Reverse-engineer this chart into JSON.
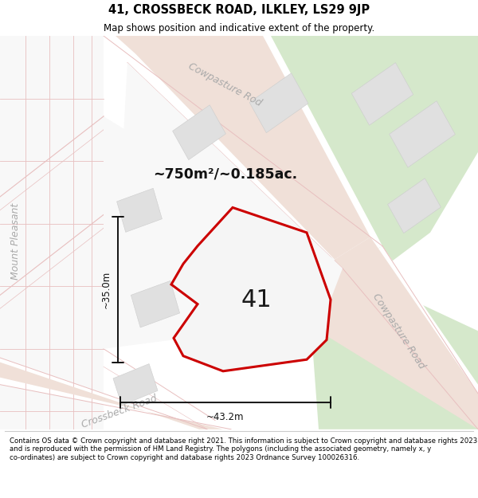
{
  "title": "41, CROSSBECK ROAD, ILKLEY, LS29 9JP",
  "subtitle": "Map shows position and indicative extent of the property.",
  "footer": "Contains OS data © Crown copyright and database right 2021. This information is subject to Crown copyright and database rights 2023 and is reproduced with the permission of HM Land Registry. The polygons (including the associated geometry, namely x, y co-ordinates) are subject to Crown copyright and database rights 2023 Ordnance Survey 100026316.",
  "area_label": "~750m²/~0.185ac.",
  "property_number": "41",
  "dim_height": "~35.0m",
  "dim_width": "~43.2m",
  "road_label_top": "Cowpasture R⁠o⁠a⁠d",
  "road_label_right": "Cowpasture Road",
  "road_label_bottom": "Crossbeck Road",
  "road_label_left": "Mount Pleasant",
  "bg_map_color": "#f2f0ed",
  "bg_green_color": "#d5e8cb",
  "road_white_color": "#ffffff",
  "road_fill_color": "#f0e0d8",
  "road_line_color": "#e8bfbf",
  "building_fill": "#e0e0e0",
  "building_edge": "#cccccc",
  "property_outline_color": "#cc0000",
  "property_fill_color": "#f5f5f5",
  "dim_line_color": "#111111",
  "footer_separator": "#cccccc"
}
